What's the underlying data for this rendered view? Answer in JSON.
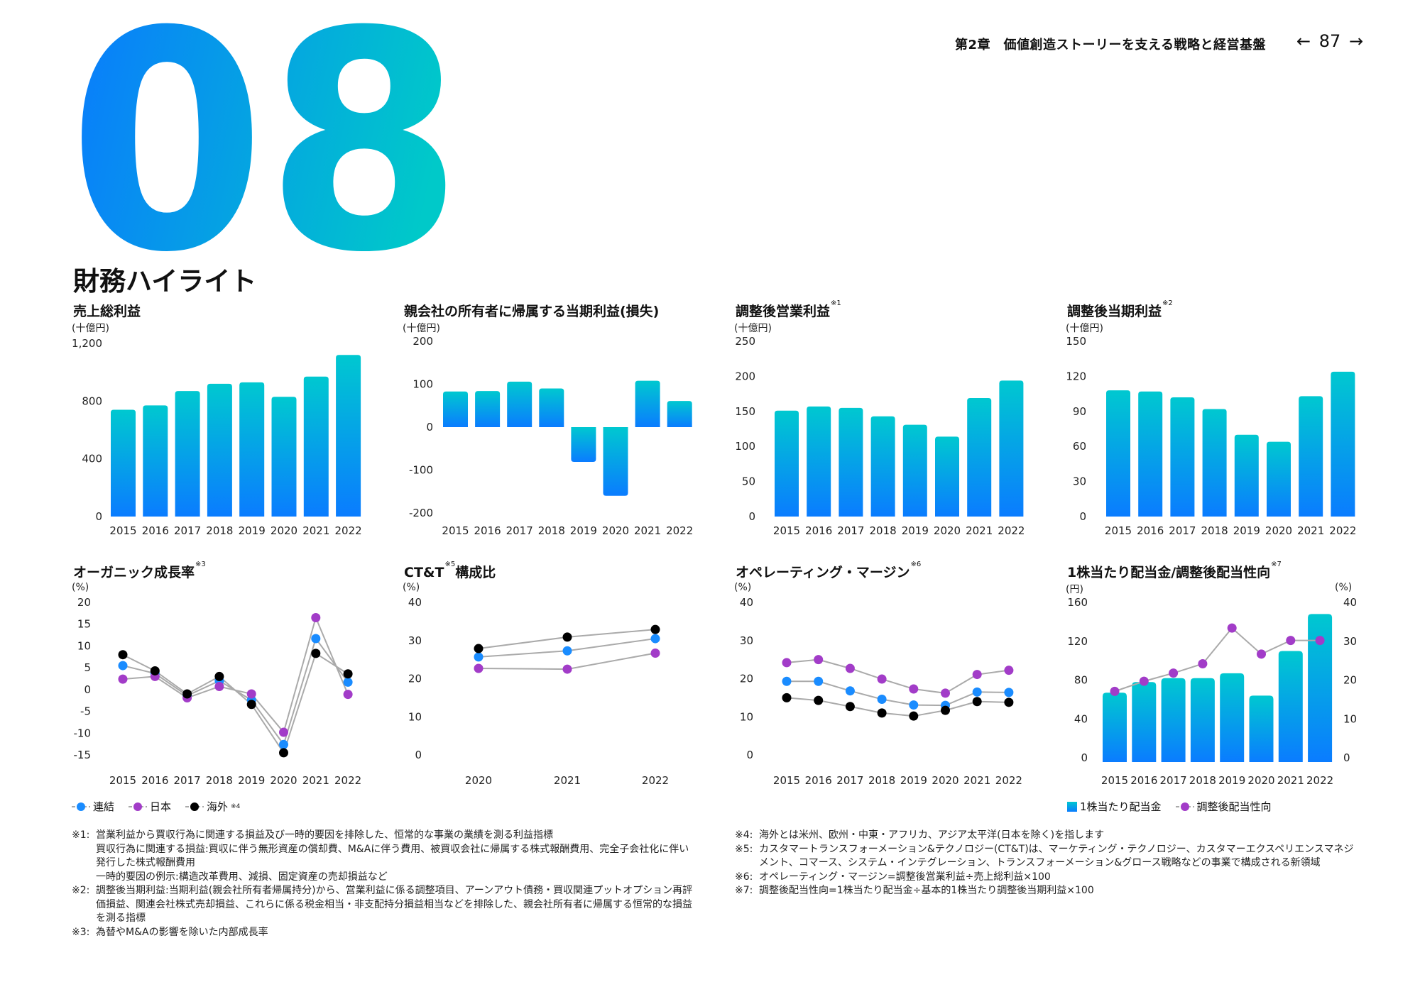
{
  "header": {
    "chapter": "第2章　価値創造ストーリーを支える戦略と経営基盤",
    "page_number": "87",
    "prev_icon": "arrow-left-icon",
    "next_icon": "arrow-right-icon"
  },
  "hero": {
    "number": "08",
    "gradient": [
      "#0a78ff",
      "#00c9c9"
    ]
  },
  "page_title": "財務ハイライト",
  "colors": {
    "bar_top": "#00c8d0",
    "bar_bottom": "#0a7cff",
    "consolidated": "#1a8cff",
    "japan": "#a23cc8",
    "international": "#000000",
    "line": "#aaaaaa"
  },
  "legends": {
    "organic": [
      {
        "label": "連結",
        "sup": ""
      },
      {
        "label": "日本",
        "sup": ""
      },
      {
        "label": "海外",
        "sup": "※4"
      }
    ],
    "dividend": [
      {
        "label": "1株当たり配当金"
      },
      {
        "label": "調整後配当性向"
      }
    ]
  },
  "chart_data": [
    {
      "type": "bar",
      "title": "売上総利益",
      "sup": "",
      "unit": "(十億円)",
      "categories": [
        "2015",
        "2016",
        "2017",
        "2018",
        "2019",
        "2020",
        "2021",
        "2022"
      ],
      "values": [
        740,
        770,
        870,
        920,
        930,
        830,
        970,
        1120
      ],
      "ylim": [
        0,
        1200
      ],
      "yticks": [
        "0",
        "400",
        "800",
        "1,200"
      ],
      "ytick_values": [
        0,
        400,
        800,
        1200
      ]
    },
    {
      "type": "bar",
      "title": "親会社の所有者に帰属する当期利益(損失)",
      "sup": "",
      "unit": "(十億円)",
      "categories": [
        "2015",
        "2016",
        "2017",
        "2018",
        "2019",
        "2020",
        "2021",
        "2022"
      ],
      "values": [
        83,
        84,
        106,
        90,
        -81,
        -160,
        108,
        61
      ],
      "ylim": [
        -200,
        200
      ],
      "yticks": [
        "-200",
        "-100",
        "0",
        "100",
        "200"
      ],
      "ytick_values": [
        -200,
        -100,
        0,
        100,
        200
      ]
    },
    {
      "type": "bar",
      "title": "調整後営業利益",
      "sup": "※1",
      "unit": "(十億円)",
      "categories": [
        "2015",
        "2016",
        "2017",
        "2018",
        "2019",
        "2020",
        "2021",
        "2022"
      ],
      "values": [
        151,
        157,
        155,
        143,
        131,
        114,
        169,
        194
      ],
      "ylim": [
        0,
        250
      ],
      "yticks": [
        "0",
        "50",
        "100",
        "150",
        "200",
        "250"
      ],
      "ytick_values": [
        0,
        50,
        100,
        150,
        200,
        250
      ]
    },
    {
      "type": "bar",
      "title": "調整後当期利益",
      "sup": "※2",
      "unit": "(十億円)",
      "categories": [
        "2015",
        "2016",
        "2017",
        "2018",
        "2019",
        "2020",
        "2021",
        "2022"
      ],
      "values": [
        108,
        107,
        102,
        92,
        70,
        64,
        103,
        124
      ],
      "ylim": [
        0,
        150
      ],
      "yticks": [
        "0",
        "30",
        "60",
        "90",
        "120",
        "150"
      ],
      "ytick_values": [
        0,
        30,
        60,
        90,
        120,
        150
      ]
    },
    {
      "type": "line",
      "title": "オーガニック成長率",
      "sup": "※3",
      "unit": "(%)",
      "categories": [
        "2015",
        "2016",
        "2017",
        "2018",
        "2019",
        "2020",
        "2021",
        "2022"
      ],
      "series": [
        {
          "name": "連結",
          "values": [
            5.5,
            3.7,
            -1.4,
            2.0,
            -2.4,
            -12.6,
            11.7,
            1.7
          ]
        },
        {
          "name": "日本",
          "values": [
            2.4,
            3.0,
            -1.9,
            0.7,
            -1.0,
            -9.8,
            16.5,
            -1.1
          ]
        },
        {
          "name": "海外",
          "values": [
            8.0,
            4.3,
            -1.0,
            3.0,
            -3.4,
            -14.5,
            8.3,
            3.6
          ]
        }
      ],
      "ylim": [
        -15,
        20
      ],
      "yticks": [
        "-15",
        "-10",
        "-5",
        "0",
        "5",
        "10",
        "15",
        "20"
      ],
      "ytick_values": [
        -15,
        -10,
        -5,
        0,
        5,
        10,
        15,
        20
      ],
      "legend": "bottom-left"
    },
    {
      "type": "line",
      "title": "CT&T",
      "sup": "※5",
      "title_suffix": "構成比",
      "unit": "(%)",
      "categories": [
        "2020",
        "2021",
        "2022"
      ],
      "series": [
        {
          "values": [
            25.7,
            27.3,
            30.5
          ]
        },
        {
          "values": [
            22.7,
            22.5,
            26.7
          ]
        },
        {
          "values": [
            27.9,
            30.9,
            32.9
          ]
        }
      ],
      "ylim": [
        0,
        40
      ],
      "yticks": [
        "0",
        "10",
        "20",
        "30",
        "40"
      ],
      "ytick_values": [
        0,
        10,
        20,
        30,
        40
      ]
    },
    {
      "type": "line",
      "title": "オペレーティング・マージン",
      "sup": "※6",
      "unit": "(%)",
      "categories": [
        "2015",
        "2016",
        "2017",
        "2018",
        "2019",
        "2020",
        "2021",
        "2022"
      ],
      "series": [
        {
          "values": [
            19.3,
            19.3,
            16.8,
            14.6,
            13.1,
            13.0,
            16.5,
            16.4
          ]
        },
        {
          "values": [
            24.2,
            25.0,
            22.7,
            19.9,
            17.3,
            16.2,
            21.1,
            22.2
          ]
        },
        {
          "values": [
            15.0,
            14.3,
            12.7,
            11.0,
            10.2,
            11.7,
            14.0,
            13.8
          ]
        }
      ],
      "ylim": [
        0,
        40
      ],
      "yticks": [
        "0",
        "10",
        "20",
        "30",
        "40"
      ],
      "ytick_values": [
        0,
        10,
        20,
        30,
        40
      ]
    },
    {
      "type": "bar+line",
      "title": "1株当たり配当金/調整後配当性向",
      "sup": "※7",
      "unit": "(円)",
      "unit_right": "(%)",
      "categories": [
        "2015",
        "2016",
        "2017",
        "2018",
        "2019",
        "2020",
        "2021",
        "2022"
      ],
      "series": [
        {
          "name": "1株当たり配当金",
          "type": "bar",
          "axis": "left",
          "values": [
            67,
            78,
            82,
            82,
            87,
            64,
            110,
            148
          ]
        },
        {
          "name": "調整後配当性向",
          "type": "line",
          "axis": "right",
          "values": [
            17.1,
            19.7,
            21.8,
            24.2,
            33.4,
            26.7,
            30.2,
            30.2
          ]
        }
      ],
      "ylim": [
        0,
        160
      ],
      "yticks": [
        "0",
        "40",
        "80",
        "120",
        "160"
      ],
      "ytick_values": [
        0,
        40,
        80,
        120,
        160
      ],
      "ylim_right": [
        0,
        40
      ],
      "yticks_right": [
        "0",
        "10",
        "20",
        "30",
        "40"
      ],
      "ytick_values_right": [
        0,
        10,
        20,
        30,
        40
      ],
      "legend": "bottom-left"
    }
  ],
  "footnotes_left": [
    {
      "key": "※1:",
      "lines": [
        "営業利益から買収行為に関連する損益及び一時的要因を排除した、恒常的な事業の業績を測る利益指標",
        "買収行為に関連する損益:買収に伴う無形資産の償却費、M&Aに伴う費用、被買収会社に帰属する株式報酬費用、完全子会社化に伴い発行した株式報酬費用",
        "一時的要因の例示:構造改革費用、減損、固定資産の売却損益など"
      ]
    },
    {
      "key": "※2:",
      "lines": [
        "調整後当期利益:当期利益(親会社所有者帰属持分)から、営業利益に係る調整項目、アーンアウト債務・買収関連プットオプション再評価損益、関連会社株式売却損益、これらに係る税金相当・非支配持分損益相当などを排除した、親会社所有者に帰属する恒常的な損益を測る指標"
      ]
    },
    {
      "key": "※3:",
      "lines": [
        "為替やM&Aの影響を除いた内部成長率"
      ]
    }
  ],
  "footnotes_right": [
    {
      "key": "※4:",
      "lines": [
        "海外とは米州、欧州・中東・アフリカ、アジア太平洋(日本を除く)を指します"
      ]
    },
    {
      "key": "※5:",
      "lines": [
        "カスタマートランスフォーメーション&テクノロジー(CT&T)は、マーケティング・テクノロジー、カスタマーエクスペリエンスマネジメント、コマース、システム・インテグレーション、トランスフォーメーション&グロース戦略などの事業で構成される新領域"
      ]
    },
    {
      "key": "※6:",
      "lines": [
        "オペレーティング・マージン=調整後営業利益÷売上総利益×100"
      ]
    },
    {
      "key": "※7:",
      "lines": [
        "調整後配当性向=1株当たり配当金÷基本的1株当たり調整後当期利益×100"
      ]
    }
  ]
}
